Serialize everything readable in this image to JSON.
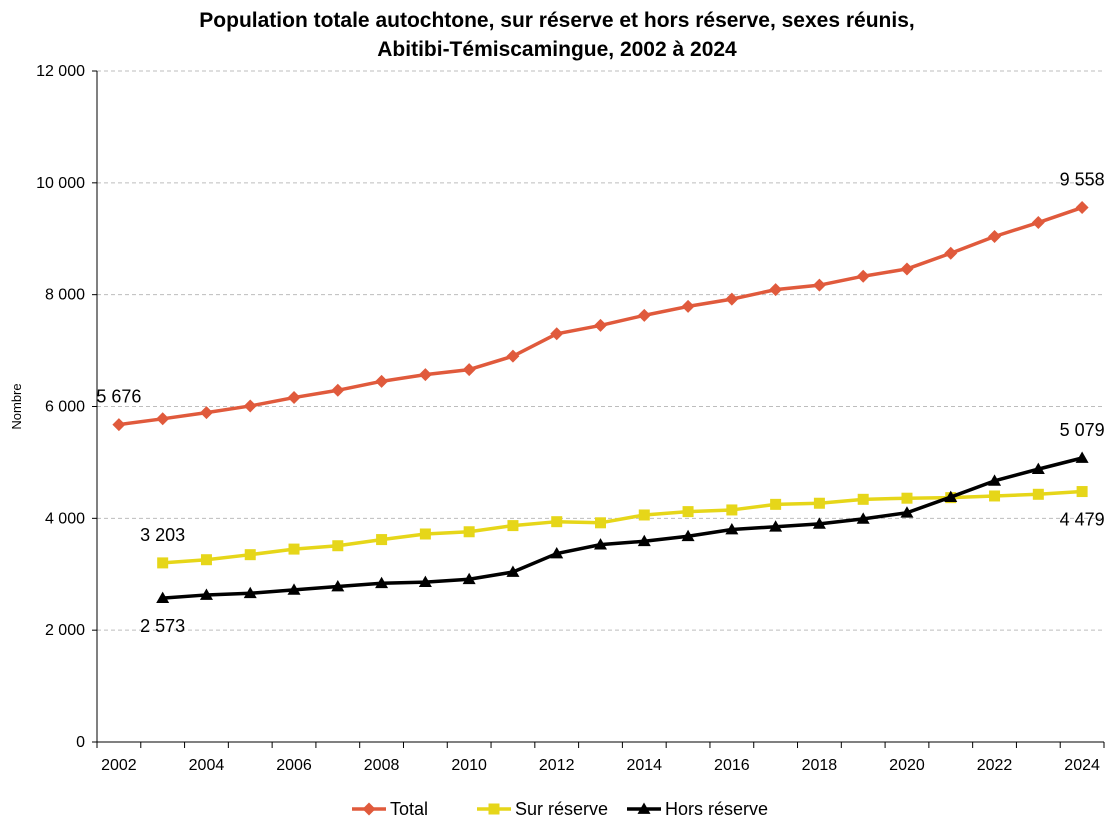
{
  "chart_data": {
    "type": "line",
    "title_line1": "Population totale autochtone, sur réserve et hors réserve, sexes réunis,",
    "title_line2": "Abitibi-Témiscamingue, 2002 à 2024",
    "ylabel": "Nombre",
    "xlabel": "",
    "x_ticks": [
      "2002",
      "2004",
      "2006",
      "2008",
      "2010",
      "2012",
      "2014",
      "2016",
      "2018",
      "2020",
      "2022",
      "2024"
    ],
    "y_ticks": [
      "0",
      "2 000",
      "4 000",
      "6 000",
      "8 000",
      "10 000",
      "12 000"
    ],
    "ylim": [
      0,
      12000
    ],
    "grid": "horizontal dashed",
    "legend_position": "bottom",
    "series": [
      {
        "name": "Total",
        "color": "#e05a3c",
        "marker": "diamond",
        "x": [
          2002,
          2003,
          2004,
          2005,
          2006,
          2007,
          2008,
          2009,
          2010,
          2011,
          2012,
          2013,
          2014,
          2015,
          2016,
          2017,
          2018,
          2019,
          2020,
          2021,
          2022,
          2023,
          2024
        ],
        "values": [
          5676,
          5780,
          5890,
          6010,
          6160,
          6290,
          6450,
          6570,
          6660,
          6900,
          7300,
          7450,
          7630,
          7790,
          7920,
          8090,
          8170,
          8330,
          8460,
          8740,
          9040,
          9290,
          9558
        ],
        "labels": [
          {
            "x": 2002,
            "text": "5 676",
            "pos": "above"
          },
          {
            "x": 2024,
            "text": "9 558",
            "pos": "above"
          }
        ]
      },
      {
        "name": "Sur réserve",
        "color": "#e6d619",
        "marker": "square",
        "x": [
          2003,
          2004,
          2005,
          2006,
          2007,
          2008,
          2009,
          2010,
          2011,
          2012,
          2013,
          2014,
          2015,
          2016,
          2017,
          2018,
          2019,
          2020,
          2021,
          2022,
          2023,
          2024
        ],
        "values": [
          3203,
          3260,
          3350,
          3450,
          3510,
          3620,
          3720,
          3760,
          3870,
          3940,
          3920,
          4060,
          4120,
          4150,
          4250,
          4270,
          4340,
          4360,
          4370,
          4400,
          4430,
          4479
        ],
        "labels": [
          {
            "x": 2003,
            "text": "3 203",
            "pos": "above"
          },
          {
            "x": 2024,
            "text": "4 479",
            "pos": "below"
          }
        ]
      },
      {
        "name": "Hors réserve",
        "color": "#000000",
        "marker": "triangle",
        "x": [
          2003,
          2004,
          2005,
          2006,
          2007,
          2008,
          2009,
          2010,
          2011,
          2012,
          2013,
          2014,
          2015,
          2016,
          2017,
          2018,
          2019,
          2020,
          2021,
          2022,
          2023,
          2024
        ],
        "values": [
          2573,
          2630,
          2660,
          2720,
          2780,
          2840,
          2860,
          2910,
          3040,
          3370,
          3530,
          3590,
          3680,
          3800,
          3850,
          3900,
          3990,
          4100,
          4380,
          4670,
          4880,
          5079
        ],
        "labels": [
          {
            "x": 2003,
            "text": "2 573",
            "pos": "below"
          },
          {
            "x": 2024,
            "text": "5 079",
            "pos": "above"
          }
        ]
      }
    ]
  }
}
